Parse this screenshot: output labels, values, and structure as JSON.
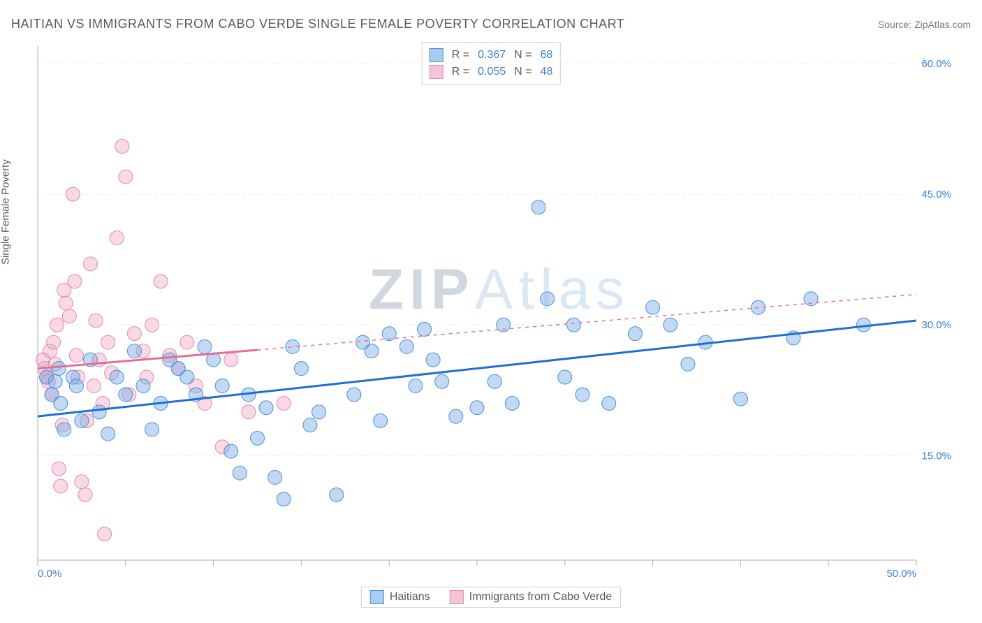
{
  "title": "HAITIAN VS IMMIGRANTS FROM CABO VERDE SINGLE FEMALE POVERTY CORRELATION CHART",
  "source": "Source: ZipAtlas.com",
  "ylabel": "Single Female Poverty",
  "watermark_part1": "ZIP",
  "watermark_part2": "Atlas",
  "chart": {
    "type": "scatter",
    "background_color": "#ffffff",
    "grid_color": "#e5e5e5",
    "tick_color": "#b0b0b0",
    "axis_label_color": "#3b7dd8",
    "xlim": [
      0,
      50
    ],
    "ylim": [
      3,
      62
    ],
    "ytick_positions": [
      15,
      30,
      45,
      60
    ],
    "ytick_labels": [
      "15.0%",
      "30.0%",
      "45.0%",
      "60.0%"
    ],
    "xtick_positions": [
      0,
      5,
      10,
      15,
      20,
      25,
      30,
      35,
      40,
      45,
      50
    ],
    "xtick_labels_shown": {
      "0": "0.0%",
      "50": "50.0%"
    },
    "marker_radius": 10,
    "marker_stroke_width": 1,
    "trendline_width": 3,
    "series": [
      {
        "name": "Haitians",
        "fill_color": "rgba(120,170,230,0.45)",
        "stroke_color": "#4b8fd6",
        "swatch_fill": "#a9cdf0",
        "swatch_stroke": "#4b8fd6",
        "stats": {
          "R": "0.367",
          "N": "68"
        },
        "trendline": {
          "x1": 0,
          "y1": 19.5,
          "x2": 50,
          "y2": 30.5,
          "solid_until_x": 50,
          "color": "#1f6fd0"
        },
        "points": [
          [
            0.5,
            24
          ],
          [
            0.8,
            22
          ],
          [
            1,
            23.5
          ],
          [
            1.2,
            25
          ],
          [
            1.3,
            21
          ],
          [
            1.5,
            18
          ],
          [
            2,
            24
          ],
          [
            2.2,
            23
          ],
          [
            2.5,
            19
          ],
          [
            3,
            26
          ],
          [
            3.5,
            20
          ],
          [
            4,
            17.5
          ],
          [
            4.5,
            24
          ],
          [
            5,
            22
          ],
          [
            5.5,
            27
          ],
          [
            6,
            23
          ],
          [
            6.5,
            18
          ],
          [
            7,
            21
          ],
          [
            7.5,
            26
          ],
          [
            8,
            25
          ],
          [
            8.5,
            24
          ],
          [
            9,
            22
          ],
          [
            9.5,
            27.5
          ],
          [
            10,
            26
          ],
          [
            10.5,
            23
          ],
          [
            11,
            15.5
          ],
          [
            11.5,
            13
          ],
          [
            12,
            22
          ],
          [
            12.5,
            17
          ],
          [
            13,
            20.5
          ],
          [
            13.5,
            12.5
          ],
          [
            14,
            10
          ],
          [
            14.5,
            27.5
          ],
          [
            15,
            25
          ],
          [
            15.5,
            18.5
          ],
          [
            16,
            20
          ],
          [
            17,
            10.5
          ],
          [
            18,
            22
          ],
          [
            18.5,
            28
          ],
          [
            19,
            27
          ],
          [
            19.5,
            19
          ],
          [
            20,
            29
          ],
          [
            21,
            27.5
          ],
          [
            21.5,
            23
          ],
          [
            22,
            29.5
          ],
          [
            22.5,
            26
          ],
          [
            23,
            23.5
          ],
          [
            23.8,
            19.5
          ],
          [
            25,
            20.5
          ],
          [
            26,
            23.5
          ],
          [
            26.5,
            30
          ],
          [
            27,
            21
          ],
          [
            28.5,
            43.5
          ],
          [
            29,
            33
          ],
          [
            30,
            24
          ],
          [
            30.5,
            30
          ],
          [
            31,
            22
          ],
          [
            32.5,
            21
          ],
          [
            34,
            29
          ],
          [
            35,
            32
          ],
          [
            36,
            30
          ],
          [
            37,
            25.5
          ],
          [
            38,
            28
          ],
          [
            40,
            21.5
          ],
          [
            41,
            32
          ],
          [
            43,
            28.5
          ],
          [
            44,
            33
          ],
          [
            47,
            30
          ]
        ]
      },
      {
        "name": "Immigrants from Cabo Verde",
        "fill_color": "rgba(240,160,190,0.40)",
        "stroke_color": "#e08aa8",
        "swatch_fill": "#f5c4d6",
        "swatch_stroke": "#e08aa8",
        "stats": {
          "R": "0.055",
          "N": "48"
        },
        "trendline": {
          "x1": 0,
          "y1": 25,
          "x2": 50,
          "y2": 33.5,
          "solid_until_x": 12.5,
          "color": "#e36f96"
        },
        "points": [
          [
            0.3,
            26
          ],
          [
            0.4,
            25
          ],
          [
            0.5,
            24
          ],
          [
            0.6,
            23.5
          ],
          [
            0.7,
            27
          ],
          [
            0.8,
            22
          ],
          [
            0.9,
            28
          ],
          [
            1,
            25.5
          ],
          [
            1.1,
            30
          ],
          [
            1.2,
            13.5
          ],
          [
            1.3,
            11.5
          ],
          [
            1.4,
            18.5
          ],
          [
            1.5,
            34
          ],
          [
            1.6,
            32.5
          ],
          [
            1.8,
            31
          ],
          [
            2,
            45
          ],
          [
            2.1,
            35
          ],
          [
            2.2,
            26.5
          ],
          [
            2.3,
            24
          ],
          [
            2.5,
            12
          ],
          [
            2.7,
            10.5
          ],
          [
            2.8,
            19
          ],
          [
            3,
            37
          ],
          [
            3.2,
            23
          ],
          [
            3.3,
            30.5
          ],
          [
            3.5,
            26
          ],
          [
            3.7,
            21
          ],
          [
            3.8,
            6
          ],
          [
            4,
            28
          ],
          [
            4.2,
            24.5
          ],
          [
            4.5,
            40
          ],
          [
            4.8,
            50.5
          ],
          [
            5,
            47
          ],
          [
            5.2,
            22
          ],
          [
            5.5,
            29
          ],
          [
            6,
            27
          ],
          [
            6.2,
            24
          ],
          [
            6.5,
            30
          ],
          [
            7,
            35
          ],
          [
            7.5,
            26.5
          ],
          [
            8,
            25
          ],
          [
            8.5,
            28
          ],
          [
            9,
            23
          ],
          [
            9.5,
            21
          ],
          [
            10.5,
            16
          ],
          [
            11,
            26
          ],
          [
            12,
            20
          ],
          [
            14,
            21
          ]
        ]
      }
    ]
  },
  "legend": {
    "series1": "Haitians",
    "series2": "Immigrants from Cabo Verde"
  },
  "stats_labels": {
    "R": "R  =",
    "N": "N  ="
  }
}
